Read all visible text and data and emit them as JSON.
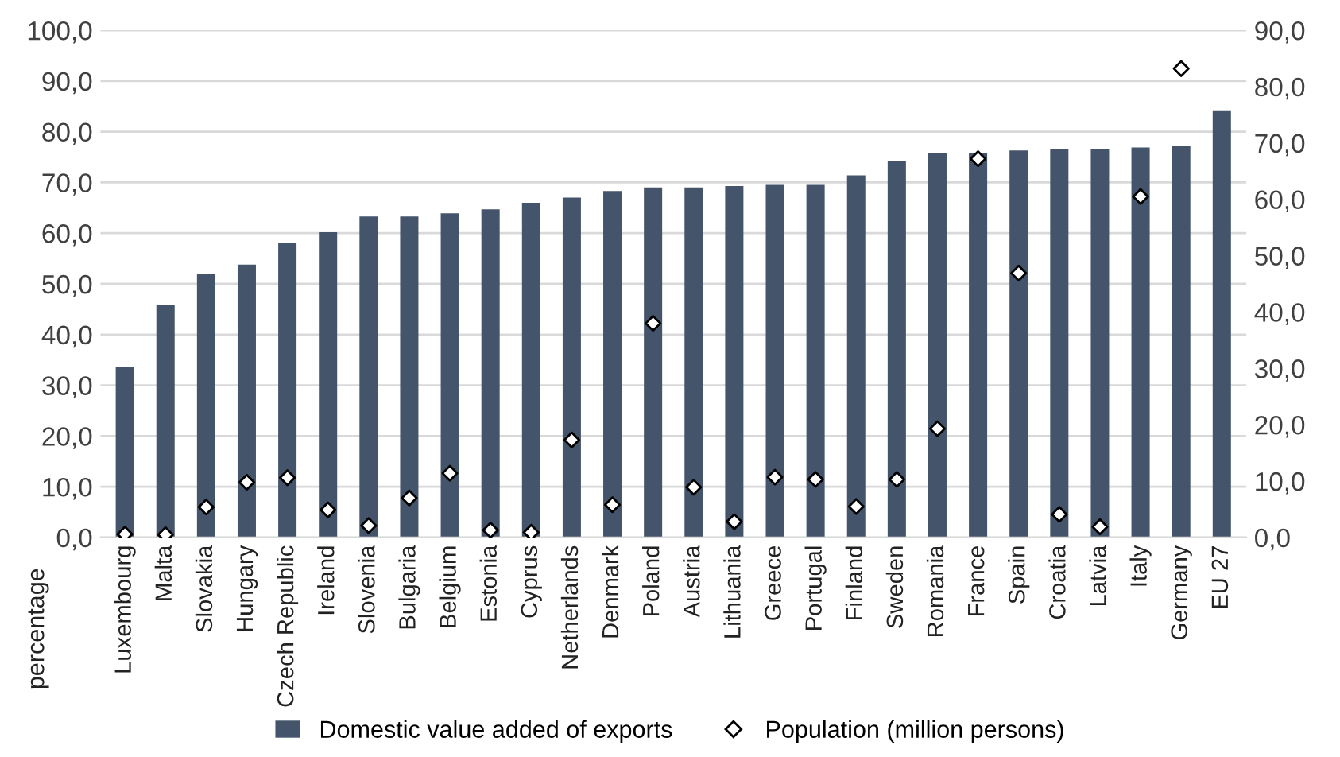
{
  "chart_data": {
    "type": "bar",
    "categories": [
      "Luxembourg",
      "Malta",
      "Slovakia",
      "Hungary",
      "Czech Republic",
      "Ireland",
      "Slovenia",
      "Bulgaria",
      "Belgium",
      "Estonia",
      "Cyprus",
      "Netherlands",
      "Denmark",
      "Poland",
      "Austria",
      "Lithuania",
      "Greece",
      "Portugal",
      "Finland",
      "Sweden",
      "Romania",
      "France",
      "Spain",
      "Croatia",
      "Latvia",
      "Italy",
      "Germany",
      "EU 27"
    ],
    "series": [
      {
        "name": "Domestic value added of exports",
        "color": "#44546a",
        "values": [
          33.6,
          45.8,
          52.0,
          53.8,
          58.0,
          60.2,
          63.3,
          63.3,
          63.9,
          64.7,
          66.0,
          67.0,
          68.3,
          69.0,
          69.0,
          69.3,
          69.5,
          69.5,
          71.4,
          74.2,
          75.7,
          75.7,
          76.3,
          76.5,
          76.6,
          76.9,
          77.2,
          84.2
        ]
      },
      {
        "name": "Population (million persons)",
        "type": "scatter",
        "axis": "y2",
        "color": "#ffffff",
        "values": [
          0.6,
          0.5,
          5.4,
          9.8,
          10.6,
          4.9,
          2.1,
          7.0,
          11.4,
          1.3,
          0.9,
          17.3,
          5.8,
          38.0,
          8.9,
          2.8,
          10.7,
          10.3,
          5.5,
          10.3,
          19.3,
          67.2,
          46.9,
          4.1,
          1.9,
          60.5,
          83.2,
          null
        ]
      }
    ],
    "ylabel": "percentage",
    "ylim": [
      0,
      100
    ],
    "yticks": [
      {
        "value": 0,
        "label": "0,0"
      },
      {
        "value": 10,
        "label": "10,0"
      },
      {
        "value": 20,
        "label": "20,0"
      },
      {
        "value": 30,
        "label": "30,0"
      },
      {
        "value": 40,
        "label": "40,0"
      },
      {
        "value": 50,
        "label": "50,0"
      },
      {
        "value": 60,
        "label": "60,0"
      },
      {
        "value": 70,
        "label": "70,0"
      },
      {
        "value": 80,
        "label": "80,0"
      },
      {
        "value": 90,
        "label": "90,0"
      },
      {
        "value": 100,
        "label": "100,0"
      }
    ],
    "y2lim": [
      0,
      90
    ],
    "y2ticks": [
      {
        "value": 0,
        "label": "0,0"
      },
      {
        "value": 10,
        "label": "10,0"
      },
      {
        "value": 20,
        "label": "20,0"
      },
      {
        "value": 30,
        "label": "30,0"
      },
      {
        "value": 40,
        "label": "40,0"
      },
      {
        "value": 50,
        "label": "50,0"
      },
      {
        "value": 60,
        "label": "60,0"
      },
      {
        "value": 70,
        "label": "70,0"
      },
      {
        "value": 80,
        "label": "80,0"
      },
      {
        "value": 90,
        "label": "90,0"
      }
    ],
    "grid": "y",
    "legend": "bottom",
    "marker": "diamond"
  }
}
